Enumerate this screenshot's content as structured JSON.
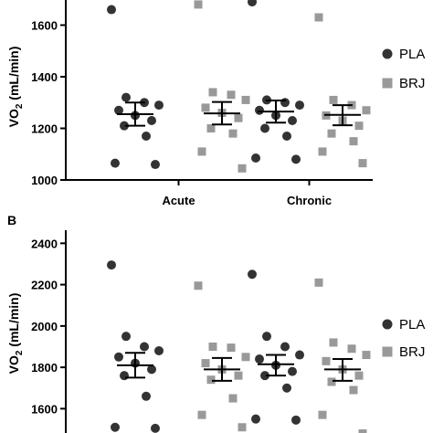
{
  "chart_data": [
    {
      "type": "scatter",
      "panel_label": "",
      "categories": [
        "Acute",
        "Chronic"
      ],
      "ylabel_main": "VO",
      "ylabel_sub": "2",
      "ylabel_rest": " (mL/min)",
      "ylim": [
        1000,
        1700
      ],
      "yticks": [
        1000,
        1200,
        1400,
        1600
      ],
      "ytick_labels": [
        "1000",
        "1200",
        "1400",
        "1600"
      ],
      "legend": [
        {
          "name": "PLA",
          "marker": "circle",
          "color": "#333333"
        },
        {
          "name": "BRJ",
          "marker": "square",
          "color": "#999999"
        }
      ],
      "groups": [
        {
          "category": "Acute",
          "series": "PLA",
          "mean": 1255,
          "sem_low": 1210,
          "sem_high": 1300,
          "points": [
            1660,
            1320,
            1300,
            1290,
            1270,
            1250,
            1230,
            1210,
            1170,
            1065,
            1060
          ]
        },
        {
          "category": "Acute",
          "series": "BRJ",
          "mean": 1258,
          "sem_low": 1215,
          "sem_high": 1302,
          "points": [
            1680,
            1340,
            1330,
            1310,
            1280,
            1260,
            1240,
            1200,
            1180,
            1110,
            1045
          ]
        },
        {
          "category": "Chronic",
          "series": "PLA",
          "mean": 1265,
          "sem_low": 1222,
          "sem_high": 1308,
          "points": [
            1690,
            1310,
            1300,
            1290,
            1270,
            1250,
            1230,
            1200,
            1170,
            1085,
            1080
          ]
        },
        {
          "category": "Chronic",
          "series": "BRJ",
          "mean": 1252,
          "sem_low": 1212,
          "sem_high": 1290,
          "points": [
            1630,
            1310,
            1290,
            1270,
            1250,
            1230,
            1210,
            1180,
            1150,
            1110,
            1065
          ]
        }
      ]
    },
    {
      "type": "scatter",
      "panel_label": "B",
      "categories": [
        "",
        ""
      ],
      "ylabel_main": "VO",
      "ylabel_sub": "2",
      "ylabel_rest": " (mL/min)",
      "ylim": [
        1500,
        2400
      ],
      "yticks": [
        1600,
        1800,
        2000,
        2200,
        2400
      ],
      "ytick_labels": [
        "1600",
        "1800",
        "2000",
        "2200",
        "2400"
      ],
      "legend": [
        {
          "name": "PLA",
          "marker": "circle",
          "color": "#333333"
        },
        {
          "name": "BRJ",
          "marker": "square",
          "color": "#999999"
        }
      ],
      "groups": [
        {
          "category": "",
          "series": "PLA",
          "mean": 1810,
          "sem_low": 1750,
          "sem_high": 1870,
          "points": [
            2295,
            1950,
            1900,
            1880,
            1850,
            1820,
            1790,
            1760,
            1660,
            1510,
            1505
          ]
        },
        {
          "category": "",
          "series": "BRJ",
          "mean": 1790,
          "sem_low": 1735,
          "sem_high": 1845,
          "points": [
            2195,
            1900,
            1895,
            1850,
            1820,
            1790,
            1760,
            1740,
            1650,
            1570,
            1510
          ]
        },
        {
          "category": "",
          "series": "PLA",
          "mean": 1815,
          "sem_low": 1760,
          "sem_high": 1860,
          "points": [
            2250,
            1950,
            1900,
            1860,
            1840,
            1810,
            1780,
            1760,
            1700,
            1550,
            1545
          ]
        },
        {
          "category": "",
          "series": "BRJ",
          "mean": 1790,
          "sem_low": 1735,
          "sem_high": 1840,
          "points": [
            2210,
            1920,
            1890,
            1860,
            1830,
            1790,
            1760,
            1730,
            1690,
            1570,
            1480
          ]
        }
      ]
    }
  ]
}
